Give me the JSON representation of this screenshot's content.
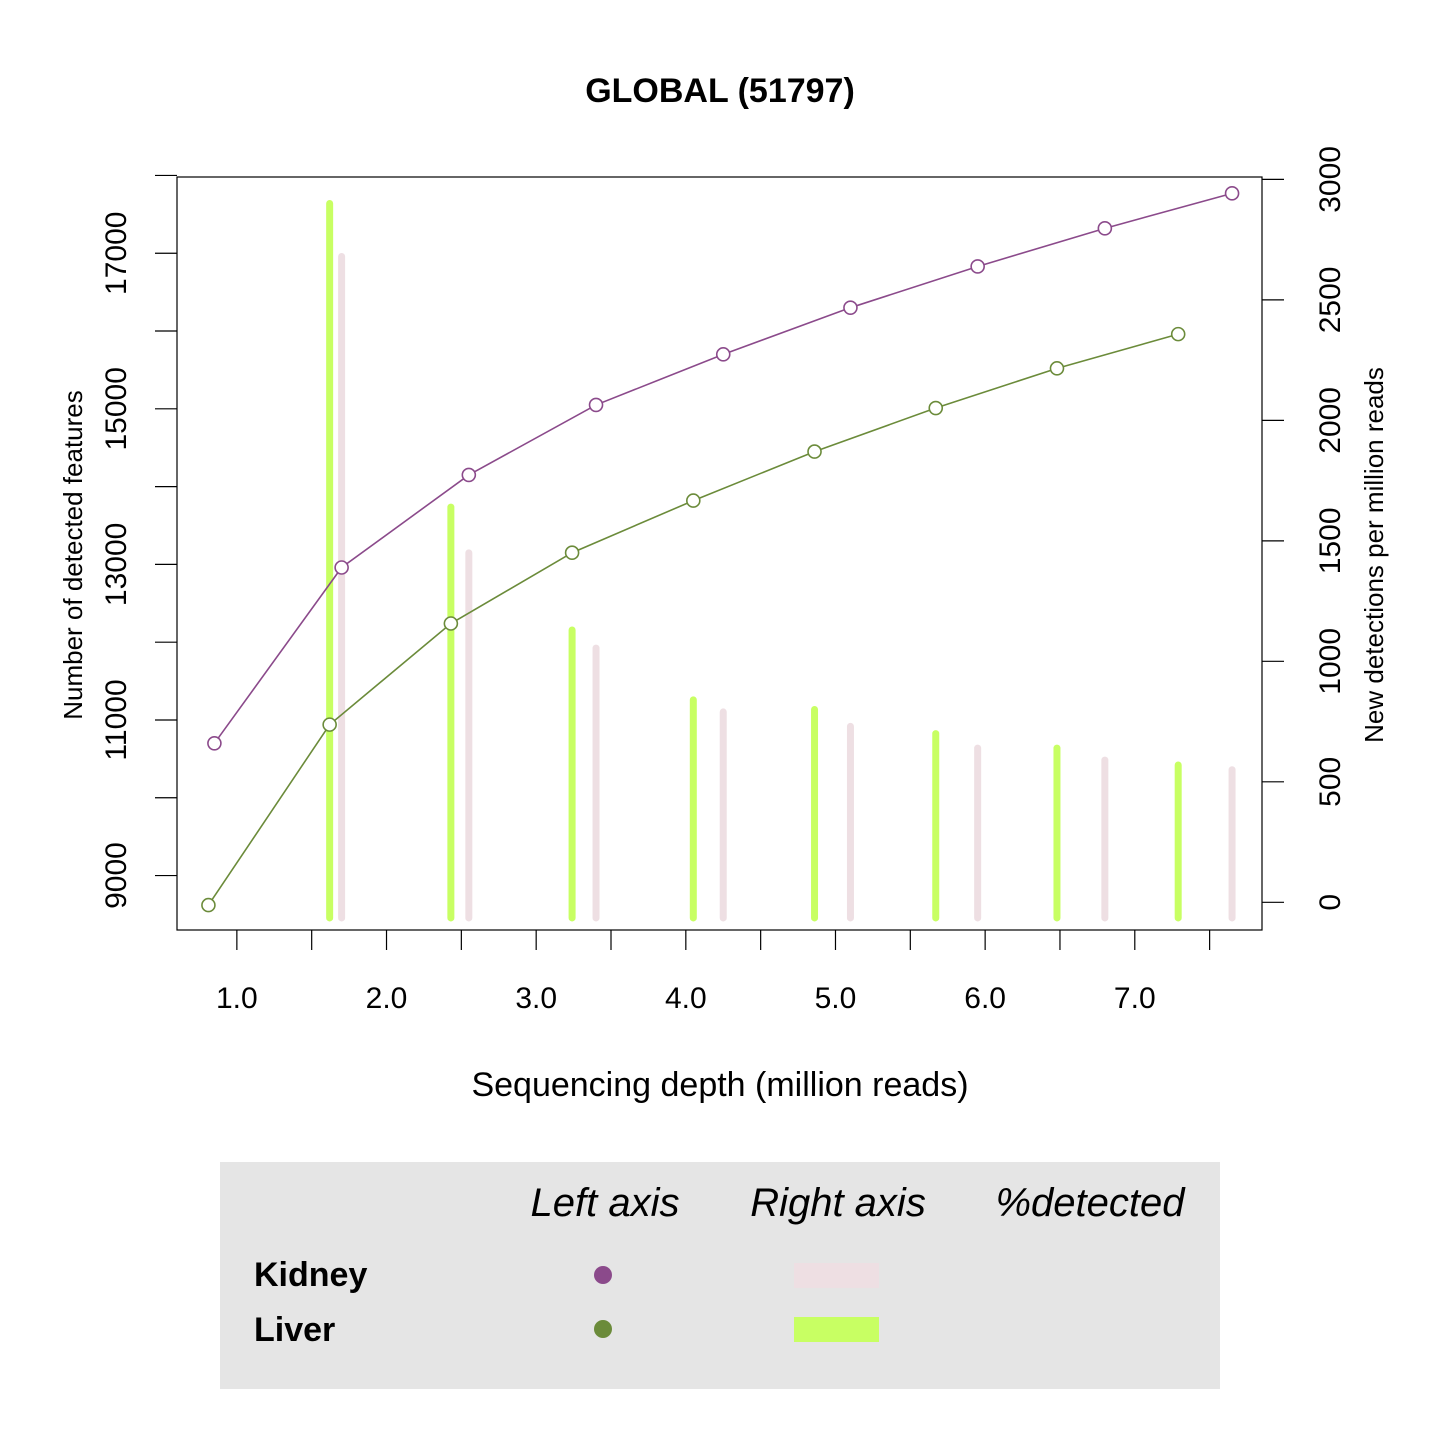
{
  "chart_data": {
    "type": "line",
    "title": "GLOBAL (51797)",
    "xlabel": "Sequencing depth (million reads)",
    "ylabel_left": "Number of detected features",
    "ylabel_right": "New detections per million reads",
    "xlim": [
      0.6,
      7.85
    ],
    "ylim_left": [
      8300,
      17980
    ],
    "ylim_right": [
      -115,
      3010
    ],
    "x_ticks": [
      1,
      1.5,
      2,
      2.5,
      3,
      3.5,
      4,
      4.5,
      5,
      5.5,
      6,
      6.5,
      7,
      7.5
    ],
    "x_tick_labels": [
      "1.0",
      "2.0",
      "3.0",
      "4.0",
      "5.0",
      "6.0",
      "7.0"
    ],
    "x_tick_label_values": [
      1,
      2,
      3,
      4,
      5,
      6,
      7
    ],
    "y_left_ticks": [
      9000,
      10000,
      11000,
      12000,
      13000,
      14000,
      15000,
      16000,
      17000,
      18000
    ],
    "y_left_tick_labels": [
      "9000",
      "11000",
      "13000",
      "15000",
      "17000"
    ],
    "y_left_tick_label_values": [
      9000,
      11000,
      13000,
      15000,
      17000
    ],
    "y_right_ticks": [
      0,
      500,
      1000,
      1500,
      2000,
      2500,
      3000
    ],
    "y_right_tick_labels": [
      "0",
      "500",
      "1000",
      "1500",
      "2000",
      "2500",
      "3000"
    ],
    "series": [
      {
        "name": "Kidney",
        "axis": "left",
        "color": "#8B4A8B",
        "x": [
          0.85,
          1.7,
          2.55,
          3.4,
          4.25,
          5.1,
          5.95,
          6.8,
          7.65
        ],
        "y": [
          10700,
          12960,
          14150,
          15050,
          15700,
          16300,
          16830,
          17320,
          17770
        ]
      },
      {
        "name": "Liver",
        "axis": "left",
        "color": "#6B8B3A",
        "x": [
          0.81,
          1.62,
          2.43,
          3.24,
          4.05,
          4.86,
          5.67,
          6.48,
          7.29
        ],
        "y": [
          8620,
          10940,
          12240,
          13150,
          13820,
          14450,
          15010,
          15520,
          15960
        ]
      }
    ],
    "bars": [
      {
        "name": "Kidney",
        "axis": "right",
        "color": "#EEDFE3",
        "x": [
          1.7,
          2.55,
          3.4,
          4.25,
          5.1,
          5.95,
          6.8,
          7.65
        ],
        "values": [
          2680,
          1450,
          1055,
          790,
          730,
          640,
          590,
          550
        ]
      },
      {
        "name": "Liver",
        "axis": "right",
        "color": "#C8FF63",
        "x": [
          1.62,
          2.43,
          3.24,
          4.05,
          4.86,
          5.67,
          6.48,
          7.29
        ],
        "values": [
          2900,
          1640,
          1130,
          840,
          800,
          700,
          640,
          570
        ]
      }
    ],
    "legend": {
      "placement": "bottom",
      "headers": [
        "Left axis",
        "Right axis",
        "%detected"
      ],
      "rows": [
        {
          "label": "Kidney",
          "point_color": "#8B4A8B",
          "bar_color": "#EEDFE3"
        },
        {
          "label": "Liver",
          "point_color": "#6B8B3A",
          "bar_color": "#C8FF63"
        }
      ],
      "background": "#E5E5E5"
    }
  }
}
